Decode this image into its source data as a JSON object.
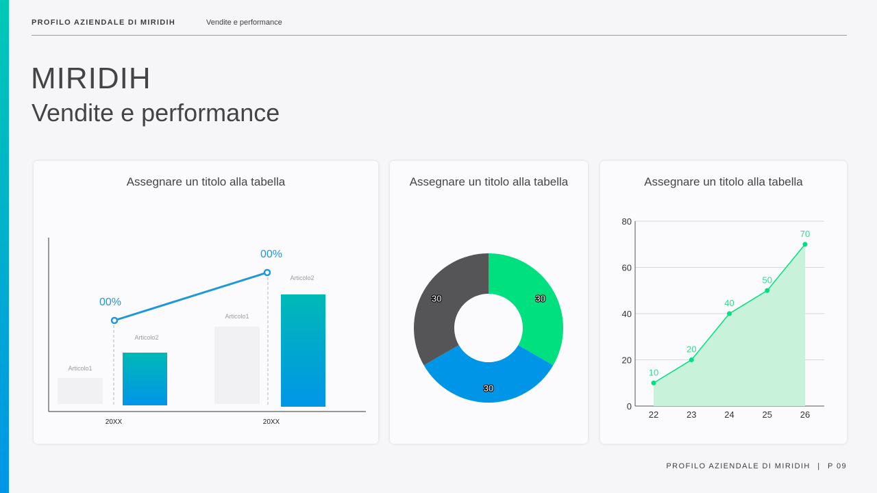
{
  "header": {
    "company": "PROFILO AZIENDALE DI MIRIDIH",
    "section": "Vendite e performance"
  },
  "title": {
    "main": "MIRIDIH",
    "sub": "Vendite e performance"
  },
  "footer": {
    "company": "PROFILO AZIENDALE DI MIRIDIH",
    "separator": "|",
    "page": "P 09"
  },
  "colors": {
    "accent_top": "#00c9b4",
    "accent_bottom": "#0195e8",
    "line_blue": "#1e98d8",
    "green": "#00e07f",
    "dark_gray": "#555558",
    "blue": "#0195e8",
    "light_green_fill": "#c8f2d9"
  },
  "chart_data": [
    {
      "type": "bar",
      "title": "Assegnare un titolo alla tabella",
      "categories": [
        "20XX",
        "20XX"
      ],
      "series": [
        {
          "name": "Articolo1",
          "values": [
            null,
            null
          ]
        },
        {
          "name": "Articolo2",
          "values": [
            null,
            null
          ]
        }
      ],
      "overlay_line": {
        "labels": [
          "00%",
          "00%"
        ]
      },
      "grid": false
    },
    {
      "type": "pie",
      "title": "Assegnare un titolo alla tabella",
      "donut": true,
      "slices": [
        {
          "value": 30,
          "label": "30",
          "color": "#00e07f"
        },
        {
          "value": 30,
          "label": "30",
          "color": "#0195e8"
        },
        {
          "value": 30,
          "label": "30",
          "color": "#555558"
        }
      ]
    },
    {
      "type": "area",
      "title": "Assegnare un titolo alla tabella",
      "x": [
        22,
        23,
        24,
        25,
        26
      ],
      "y": [
        10,
        20,
        40,
        50,
        70
      ],
      "data_labels": [
        "10",
        "20",
        "40",
        "50",
        "70"
      ],
      "ylim": [
        0,
        80
      ],
      "yticks": [
        0,
        20,
        40,
        60,
        80
      ],
      "grid": true
    }
  ]
}
